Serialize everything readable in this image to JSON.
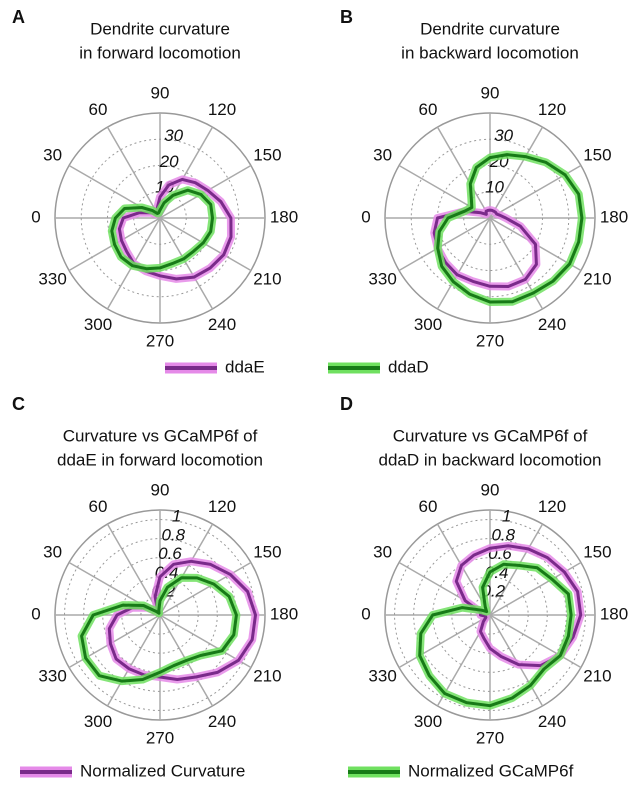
{
  "chart_data": [
    {
      "type": "polar",
      "panel_label": "A",
      "title": [
        "Dendrite curvature",
        "in forward locomotion"
      ],
      "theta": [
        0,
        15,
        30,
        45,
        60,
        75,
        90,
        105,
        120,
        135,
        150,
        165,
        180,
        195,
        210,
        225,
        240,
        255,
        270,
        285,
        300,
        315,
        330,
        345
      ],
      "thetaticks": [
        0,
        30,
        60,
        90,
        120,
        150,
        180,
        210,
        240,
        270,
        300,
        330
      ],
      "rlim": [
        0,
        40
      ],
      "rticks": [
        10,
        20,
        30
      ],
      "grid": true,
      "series": [
        {
          "name": "ddaE",
          "color": "#7a2a8a",
          "halo_color": "#e58ae8",
          "values": [
            14,
            8,
            4,
            2,
            2,
            4,
            8,
            13,
            17,
            19,
            21,
            24,
            27,
            28,
            28,
            27,
            26,
            24,
            22,
            21,
            20,
            18,
            17,
            16
          ]
        },
        {
          "name": "ddaD",
          "color": "#177a17",
          "halo_color": "#70e060",
          "values": [
            17,
            14,
            8,
            4,
            2,
            2,
            3,
            6,
            10,
            15,
            18,
            20,
            20,
            20,
            19,
            18,
            18,
            18,
            19,
            20,
            21,
            21,
            20,
            19
          ]
        }
      ]
    },
    {
      "type": "polar",
      "panel_label": "B",
      "title": [
        "Dendrite curvature",
        "in backward locomotion"
      ],
      "theta": [
        0,
        15,
        30,
        45,
        60,
        75,
        90,
        105,
        120,
        135,
        150,
        165,
        180,
        195,
        210,
        225,
        240,
        255,
        270,
        285,
        300,
        315,
        330,
        345
      ],
      "thetaticks": [
        0,
        30,
        60,
        90,
        120,
        150,
        180,
        210,
        240,
        270,
        300,
        330
      ],
      "rlim": [
        0,
        40
      ],
      "rticks": [
        10,
        20,
        30
      ],
      "grid": true,
      "series": [
        {
          "color": "#7a2a8a",
          "halo_color": "#e58ae8",
          "values": [
            20,
            10,
            4,
            2,
            3,
            3,
            3,
            3,
            3,
            3,
            3,
            4,
            6,
            12,
            20,
            25,
            27,
            27,
            26,
            25,
            25,
            24,
            23,
            22
          ]
        },
        {
          "color": "#177a17",
          "halo_color": "#70e060",
          "values": [
            16,
            10,
            8,
            10,
            15,
            20,
            23,
            25,
            27,
            30,
            33,
            35,
            35,
            35,
            35,
            34,
            33,
            33,
            32,
            30,
            28,
            26,
            23,
            20
          ]
        }
      ]
    },
    {
      "type": "polar",
      "panel_label": "C",
      "title": [
        "Curvature vs GCaMP6f of",
        "ddaE in forward locomotion"
      ],
      "theta": [
        0,
        15,
        30,
        45,
        60,
        75,
        90,
        105,
        120,
        135,
        150,
        165,
        180,
        195,
        210,
        225,
        240,
        255,
        270,
        285,
        300,
        315,
        330,
        345
      ],
      "thetaticks": [
        0,
        30,
        60,
        90,
        120,
        150,
        180,
        210,
        240,
        270,
        300,
        330
      ],
      "rlim": [
        0,
        1.1
      ],
      "rticks": [
        0.2,
        0.4,
        0.6,
        0.8,
        1
      ],
      "grid": true,
      "series": [
        {
          "name": "Normalized Curvature",
          "color": "#7a2a8a",
          "halo_color": "#e58ae8",
          "values": [
            0.45,
            0.3,
            0.15,
            0.05,
            0.05,
            0.2,
            0.4,
            0.55,
            0.65,
            0.75,
            0.85,
            0.95,
            1,
            1,
            0.95,
            0.85,
            0.75,
            0.7,
            0.65,
            0.65,
            0.65,
            0.65,
            0.6,
            0.55
          ]
        },
        {
          "color": "#177a17",
          "halo_color": "#70e060",
          "values": [
            0.7,
            0.4,
            0.2,
            0.05,
            0.02,
            0.05,
            0.15,
            0.3,
            0.45,
            0.55,
            0.65,
            0.75,
            0.8,
            0.8,
            0.75,
            0.6,
            0.55,
            0.55,
            0.6,
            0.7,
            0.8,
            0.9,
            0.9,
            0.85
          ]
        }
      ]
    },
    {
      "type": "polar",
      "panel_label": "D",
      "title": [
        "Curvature vs GCaMP6f of",
        "ddaD in backward locomotion"
      ],
      "theta": [
        0,
        15,
        30,
        45,
        60,
        75,
        90,
        105,
        120,
        135,
        150,
        165,
        180,
        195,
        210,
        225,
        240,
        255,
        270,
        285,
        300,
        315,
        330,
        345
      ],
      "thetaticks": [
        0,
        30,
        60,
        90,
        120,
        150,
        180,
        210,
        240,
        270,
        300,
        330
      ],
      "rlim": [
        0,
        1.1
      ],
      "rticks": [
        0.2,
        0.4,
        0.6,
        0.8,
        1
      ],
      "grid": true,
      "series": [
        {
          "color": "#7a2a8a",
          "halo_color": "#e58ae8",
          "values": [
            0.1,
            0.1,
            0.3,
            0.5,
            0.6,
            0.65,
            0.7,
            0.75,
            0.8,
            0.85,
            0.9,
            0.95,
            0.95,
            0.9,
            0.85,
            0.75,
            0.6,
            0.45,
            0.35,
            0.25,
            0.2,
            0.1,
            0.05,
            0.05
          ]
        },
        {
          "name": "Normalized GCaMP6f",
          "color": "#177a17",
          "halo_color": "#70e060",
          "values": [
            0.6,
            0.3,
            0.1,
            0.05,
            0.1,
            0.3,
            0.45,
            0.55,
            0.6,
            0.7,
            0.75,
            0.85,
            0.85,
            0.85,
            0.85,
            0.8,
            0.85,
            0.9,
            0.95,
            0.95,
            0.95,
            0.9,
            0.85,
            0.75
          ]
        }
      ]
    }
  ]
}
